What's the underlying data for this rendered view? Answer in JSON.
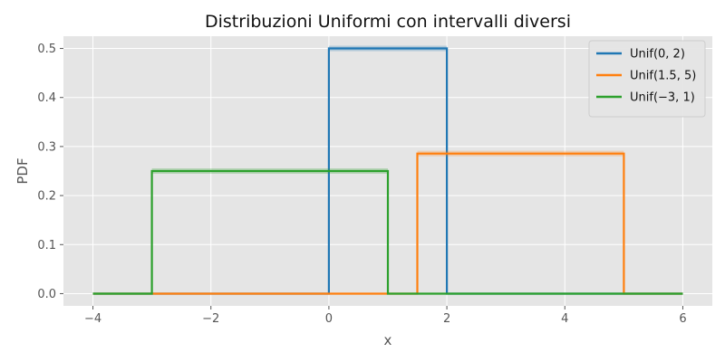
{
  "chart_data": {
    "type": "line",
    "title": "Distribuzioni Uniformi con intervalli diversi",
    "xlabel": "x",
    "ylabel": "PDF",
    "xlim": [
      -4.5,
      6.5
    ],
    "ylim": [
      -0.025,
      0.525
    ],
    "xticks": [
      -4,
      -2,
      0,
      2,
      4,
      6
    ],
    "xtick_labels": [
      "−4",
      "−2",
      "0",
      "2",
      "4",
      "6"
    ],
    "yticks": [
      0.0,
      0.1,
      0.2,
      0.3,
      0.4,
      0.5
    ],
    "ytick_labels": [
      "0.0",
      "0.1",
      "0.2",
      "0.3",
      "0.4",
      "0.5"
    ],
    "grid": true,
    "legend_position": "top-right",
    "series": [
      {
        "name": "Unif(0, 2)",
        "color": "#1f77b4",
        "x": [
          -4,
          0,
          0,
          2,
          2,
          6
        ],
        "y": [
          0,
          0,
          0.5,
          0.5,
          0,
          0
        ]
      },
      {
        "name": "Unif(1.5, 5)",
        "color": "#ff7f0e",
        "x": [
          -4,
          1.5,
          1.5,
          5,
          5,
          6
        ],
        "y": [
          0,
          0,
          0.2857,
          0.2857,
          0,
          0
        ]
      },
      {
        "name": "Unif(−3, 1)",
        "color": "#2ca02c",
        "x": [
          -4,
          -3,
          -3,
          1,
          1,
          6
        ],
        "y": [
          0,
          0,
          0.25,
          0.25,
          0,
          0
        ]
      }
    ]
  }
}
